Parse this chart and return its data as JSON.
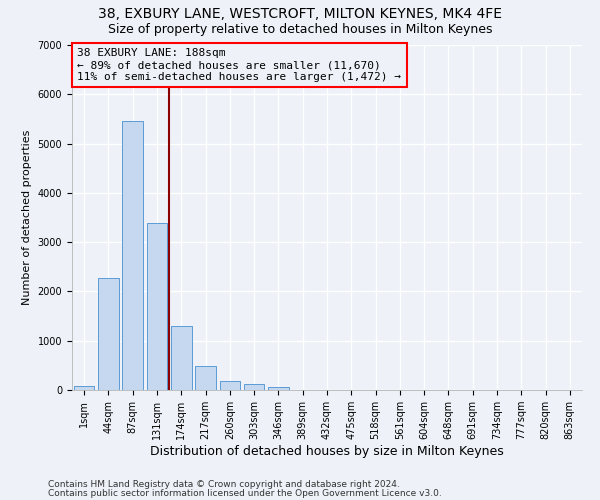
{
  "title": "38, EXBURY LANE, WESTCROFT, MILTON KEYNES, MK4 4FE",
  "subtitle": "Size of property relative to detached houses in Milton Keynes",
  "xlabel": "Distribution of detached houses by size in Milton Keynes",
  "ylabel": "Number of detached properties",
  "footnote1": "Contains HM Land Registry data © Crown copyright and database right 2024.",
  "footnote2": "Contains public sector information licensed under the Open Government Licence v3.0.",
  "bar_labels": [
    "1sqm",
    "44sqm",
    "87sqm",
    "131sqm",
    "174sqm",
    "217sqm",
    "260sqm",
    "303sqm",
    "346sqm",
    "389sqm",
    "432sqm",
    "475sqm",
    "518sqm",
    "561sqm",
    "604sqm",
    "648sqm",
    "691sqm",
    "734sqm",
    "777sqm",
    "820sqm",
    "863sqm"
  ],
  "bar_values": [
    75,
    2270,
    5450,
    3380,
    1300,
    480,
    190,
    125,
    70,
    0,
    0,
    0,
    0,
    0,
    0,
    0,
    0,
    0,
    0,
    0,
    0
  ],
  "bar_color": "#c5d8f0",
  "bar_edge_color": "#5b9bd5",
  "ylim": [
    0,
    7000
  ],
  "yticks": [
    0,
    1000,
    2000,
    3000,
    4000,
    5000,
    6000,
    7000
  ],
  "red_line_x": 3.5,
  "annotation_title": "38 EXBURY LANE: 188sqm",
  "annotation_line1": "← 89% of detached houses are smaller (11,670)",
  "annotation_line2": "11% of semi-detached houses are larger (1,472) →",
  "background_color": "#eef2f8",
  "grid_color": "#d0d8e8",
  "title_fontsize": 10,
  "subtitle_fontsize": 9,
  "xlabel_fontsize": 9,
  "ylabel_fontsize": 8,
  "tick_fontsize": 7,
  "annotation_fontsize": 8,
  "footnote_fontsize": 6.5
}
